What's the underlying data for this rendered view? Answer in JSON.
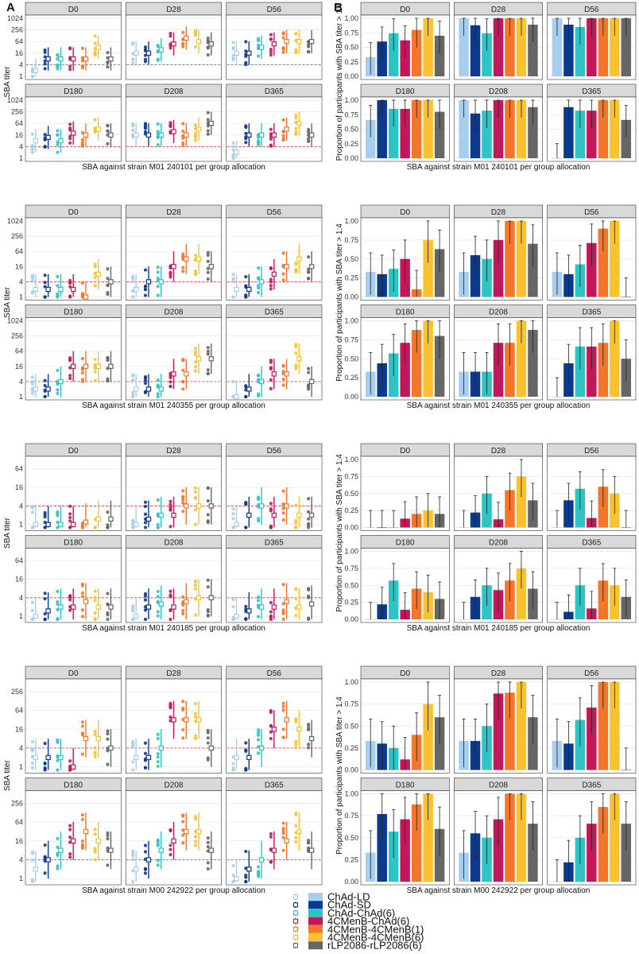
{
  "figure": {
    "panel_letters": [
      "A",
      "B"
    ]
  },
  "legend": {
    "groups": [
      {
        "name": "ChAd-LD",
        "color": "#a6cef0"
      },
      {
        "name": "ChAd-SD",
        "color": "#0b3a8c"
      },
      {
        "name": "ChAd-ChAd(6)",
        "color": "#2ec4c4"
      },
      {
        "name": "4CMenB-ChAd(6)",
        "color": "#c2185b"
      },
      {
        "name": "4CMenB-4CMenB(1)",
        "color": "#f4762b"
      },
      {
        "name": "4CMenB-4CMenB(6)",
        "color": "#f9c22e"
      },
      {
        "name": "rLP2086-rLP2086(6)",
        "color": "#666666"
      }
    ]
  },
  "chart_data": [
    {
      "id": "titer-240101",
      "type": "scatter",
      "panel": "A",
      "title": "SBA against strain M01 240101 per group allocation",
      "ylabel": "SBA titer",
      "yscale": "log2",
      "yticks": [
        "1",
        "4",
        "16",
        "64",
        "256",
        "1024"
      ],
      "ylim": [
        1,
        1024
      ],
      "threshold": 4,
      "facets": [
        "D0",
        "D28",
        "D56",
        "D180",
        "D208",
        "D365"
      ],
      "medians": [
        [
          2,
          8,
          8,
          8,
          8,
          32,
          8
        ],
        [
          16,
          16,
          24,
          48,
          96,
          64,
          48
        ],
        [
          16,
          16,
          32,
          48,
          64,
          64,
          64
        ],
        [
          8,
          12,
          8,
          20,
          16,
          32,
          16
        ],
        [
          16,
          16,
          16,
          24,
          16,
          32,
          64
        ],
        [
          2,
          16,
          16,
          16,
          32,
          64,
          16
        ]
      ]
    },
    {
      "id": "titer-240355",
      "type": "scatter",
      "panel": "A",
      "title": "SBA against strain M01 240355 per group allocation",
      "ylabel": "SBA titer",
      "yscale": "log2",
      "yticks": [
        "1",
        "4",
        "16",
        "64",
        "256",
        "1024"
      ],
      "ylim": [
        1,
        1024
      ],
      "threshold": 4,
      "facets": [
        "D0",
        "D28",
        "D56",
        "D180",
        "D208",
        "D365"
      ],
      "medians": [
        [
          2,
          2,
          2,
          2,
          1,
          8,
          4
        ],
        [
          2,
          4,
          4,
          16,
          32,
          32,
          16
        ],
        [
          2,
          2,
          4,
          8,
          16,
          32,
          16
        ],
        [
          2,
          2,
          4,
          16,
          16,
          16,
          16
        ],
        [
          2,
          2,
          2,
          8,
          8,
          32,
          32
        ],
        [
          1,
          2,
          4,
          8,
          8,
          32,
          4
        ]
      ]
    },
    {
      "id": "titer-240185",
      "type": "scatter",
      "panel": "A",
      "title": "SBA against strain M01 240185 per group allocation",
      "ylabel": "SBA titer",
      "yscale": "log2",
      "yticks": [
        "1",
        "4",
        "16",
        "64"
      ],
      "ylim": [
        0.8,
        128
      ],
      "threshold": 4,
      "facets": [
        "D0",
        "D28",
        "D56",
        "D180",
        "D208",
        "D365"
      ],
      "medians": [
        [
          1,
          1,
          1,
          1,
          1.2,
          1.5,
          1.5
        ],
        [
          1,
          1.5,
          2,
          2,
          4,
          4,
          4
        ],
        [
          1,
          2,
          4,
          2,
          4,
          2,
          2
        ],
        [
          1,
          1.5,
          2,
          2,
          3,
          2,
          2
        ],
        [
          1,
          2,
          2.5,
          2,
          3,
          4,
          4
        ],
        [
          1,
          1.5,
          2,
          2,
          3,
          2,
          2.5
        ]
      ]
    },
    {
      "id": "titer-242922",
      "type": "scatter",
      "panel": "A",
      "title": "SBA against strain M00 242922 per group allocation",
      "ylabel": "SBA titer",
      "yscale": "log2",
      "yticks": [
        "1",
        "4",
        "16",
        "64",
        "256"
      ],
      "ylim": [
        0.8,
        512
      ],
      "threshold": 4,
      "facets": [
        "D0",
        "D28",
        "D56",
        "D180",
        "D208",
        "D365"
      ],
      "medians": [
        [
          2,
          2,
          2,
          1,
          8,
          8,
          4
        ],
        [
          2,
          2,
          4,
          32,
          32,
          32,
          4
        ],
        [
          2,
          2,
          4,
          16,
          32,
          16,
          8
        ],
        [
          2,
          4,
          8,
          16,
          32,
          16,
          8
        ],
        [
          2,
          4,
          8,
          16,
          32,
          32,
          8
        ],
        [
          1,
          2,
          4,
          8,
          16,
          32,
          8
        ]
      ]
    },
    {
      "id": "prop-240101",
      "type": "bar",
      "panel": "B",
      "title": "SBA against strain M01 240101 per group allocation",
      "ylabel": "Proportion of participants with SBA titer > 1:4",
      "yticks": [
        "0.00",
        "0.25",
        "0.50",
        "0.75",
        "1.00"
      ],
      "ylim": [
        0,
        1
      ],
      "facets": [
        "D0",
        "D28",
        "D56",
        "D180",
        "D208",
        "D365"
      ],
      "values": [
        [
          0.33,
          0.6,
          0.74,
          0.62,
          0.8,
          1.0,
          0.7
        ],
        [
          1.0,
          0.88,
          0.74,
          1.0,
          1.0,
          1.0,
          0.89
        ],
        [
          1.0,
          0.89,
          0.85,
          1.0,
          1.0,
          1.0,
          1.0
        ],
        [
          0.66,
          1.0,
          0.85,
          0.85,
          1.0,
          1.0,
          0.8
        ],
        [
          1.0,
          0.77,
          0.82,
          1.0,
          1.0,
          1.0,
          0.88
        ],
        [
          0.0,
          0.88,
          0.82,
          0.82,
          1.0,
          1.0,
          0.66
        ]
      ]
    },
    {
      "id": "prop-240355",
      "type": "bar",
      "panel": "B",
      "title": "SBA against strain M01 240355 per group allocation",
      "ylabel": "Proportion of participants with SBA titer > 1:4",
      "yticks": [
        "0.00",
        "0.25",
        "0.50",
        "0.75",
        "1.00"
      ],
      "ylim": [
        0,
        1
      ],
      "facets": [
        "D0",
        "D28",
        "D56",
        "D180",
        "D208",
        "D365"
      ],
      "values": [
        [
          0.33,
          0.3,
          0.37,
          0.5,
          0.1,
          0.75,
          0.63
        ],
        [
          0.33,
          0.55,
          0.5,
          0.75,
          1.0,
          1.0,
          0.7
        ],
        [
          0.33,
          0.3,
          0.43,
          0.71,
          0.9,
          1.0,
          0.0
        ],
        [
          0.33,
          0.44,
          0.57,
          0.71,
          0.88,
          1.0,
          0.8
        ],
        [
          0.33,
          0.33,
          0.33,
          0.71,
          0.71,
          1.0,
          0.88
        ],
        [
          0.0,
          0.44,
          0.66,
          0.66,
          0.71,
          1.0,
          0.5
        ]
      ]
    },
    {
      "id": "prop-240185",
      "type": "bar",
      "panel": "B",
      "title": "SBA against strain M01 240185 per group allocation",
      "ylabel": "Proportion of participants with SBA titer > 1:4",
      "yticks": [
        "0.00",
        "0.25",
        "0.50",
        "0.75",
        "1.00"
      ],
      "ylim": [
        0,
        1
      ],
      "facets": [
        "D0",
        "D28",
        "D56",
        "D180",
        "D208",
        "D365"
      ],
      "values": [
        [
          0.0,
          0.0,
          0.0,
          0.13,
          0.2,
          0.25,
          0.2
        ],
        [
          0.0,
          0.22,
          0.5,
          0.12,
          0.55,
          0.75,
          0.4
        ],
        [
          0.0,
          0.4,
          0.57,
          0.14,
          0.6,
          0.5,
          0.0
        ],
        [
          0.0,
          0.22,
          0.57,
          0.14,
          0.45,
          0.4,
          0.3
        ],
        [
          0.0,
          0.33,
          0.5,
          0.43,
          0.57,
          0.75,
          0.45
        ],
        [
          0.0,
          0.11,
          0.5,
          0.16,
          0.57,
          0.5,
          0.33
        ]
      ]
    },
    {
      "id": "prop-242922",
      "type": "bar",
      "panel": "B",
      "title": "SBA against strain M00 242922 per group allocation",
      "ylabel": "Proportion of participants with SBA titer > 1:4",
      "yticks": [
        "0.00",
        "0.25",
        "0.50",
        "0.75",
        "1.00"
      ],
      "ylim": [
        0,
        1
      ],
      "facets": [
        "D0",
        "D28",
        "D56",
        "D180",
        "D208",
        "D365"
      ],
      "values": [
        [
          0.33,
          0.3,
          0.25,
          0.12,
          0.4,
          0.75,
          0.6
        ],
        [
          0.33,
          0.33,
          0.5,
          0.87,
          0.88,
          1.0,
          0.6
        ],
        [
          0.33,
          0.3,
          0.57,
          0.71,
          1.0,
          1.0,
          0.0
        ],
        [
          0.33,
          0.77,
          0.57,
          0.71,
          0.88,
          1.0,
          0.6
        ],
        [
          0.33,
          0.55,
          0.5,
          0.71,
          1.0,
          1.0,
          0.66
        ],
        [
          0.0,
          0.22,
          0.5,
          0.66,
          0.85,
          1.0,
          0.66
        ]
      ]
    }
  ]
}
